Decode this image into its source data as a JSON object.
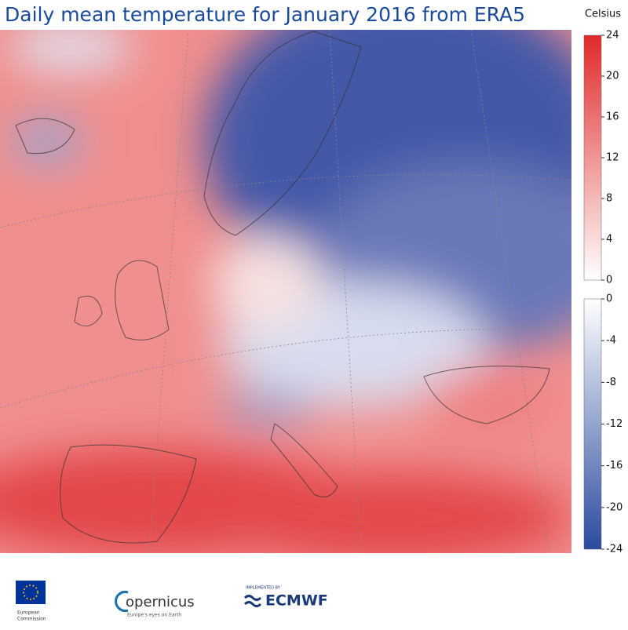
{
  "title": "Daily mean temperature for January 2016 from ERA5",
  "colorbar": {
    "unit": "Celsius",
    "warm": {
      "lim": [
        0,
        24
      ],
      "ticks": [
        0,
        4,
        8,
        12,
        16,
        20,
        24
      ],
      "color": "#e02a2a"
    },
    "cold": {
      "lim": [
        0,
        -24
      ],
      "ticks": [
        0,
        -4,
        -8,
        -12,
        -16,
        -20,
        -24
      ],
      "color": "#2a4a9e"
    }
  },
  "logos": {
    "eu": [
      "European",
      "Commission"
    ],
    "copernicus": {
      "name": "opernicus",
      "tagline": "Europe's eyes on Earth"
    },
    "ecmwf": {
      "prefix": "IMPLEMENTED BY",
      "name": "ECMWF"
    }
  }
}
